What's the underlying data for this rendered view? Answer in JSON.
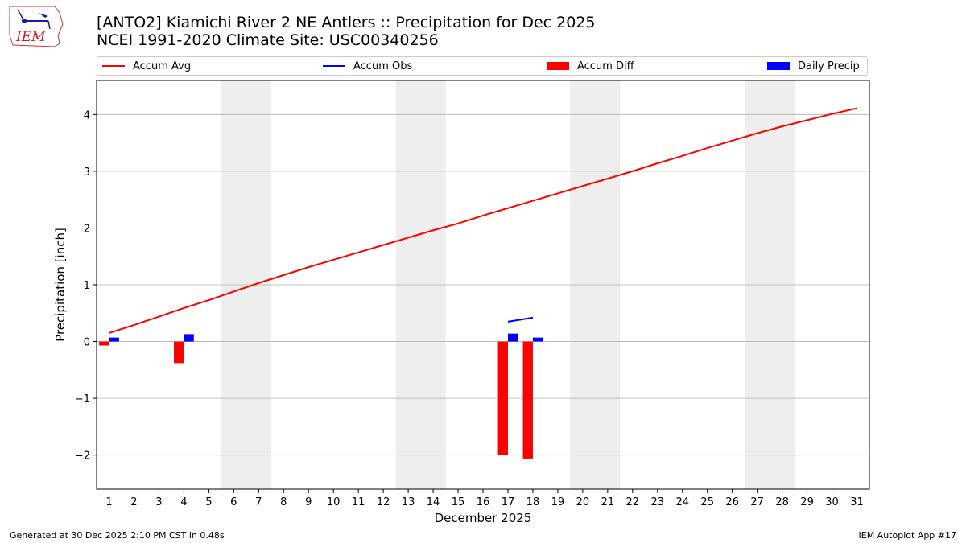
{
  "header": {
    "title_line1": "[ANTO2] Kiamichi River 2 NE Antlers :: Precipitation for Dec 2025",
    "title_line2": "NCEI 1991-2020 Climate Site: USC00340256",
    "logo_text": "IEM"
  },
  "footer": {
    "left": "Generated at 30 Dec 2025 2:10 PM CST in 0.48s",
    "right": "IEM Autoplot App #17"
  },
  "colors": {
    "accum_avg": "#ff0000",
    "accum_obs": "#0000ff",
    "accum_diff": "#ff0000",
    "daily_precip": "#0000ff",
    "weekend_shade": "#eeeeee",
    "grid": "#b0b0b0"
  },
  "chart_data": {
    "type": "bar",
    "xlabel": "December 2025",
    "ylabel": "Precipitation [inch]",
    "xlim": [
      0.5,
      31.5
    ],
    "ylim": [
      -2.6,
      4.6
    ],
    "yticks": [
      -2,
      -1,
      0,
      1,
      2,
      3,
      4
    ],
    "ytick_labels": [
      "−2",
      "−1",
      "0",
      "1",
      "2",
      "3",
      "4"
    ],
    "grid": "horizontal",
    "legend_placement": "top",
    "x": [
      1,
      2,
      3,
      4,
      5,
      6,
      7,
      8,
      9,
      10,
      11,
      12,
      13,
      14,
      15,
      16,
      17,
      18,
      19,
      20,
      21,
      22,
      23,
      24,
      25,
      26,
      27,
      28,
      29,
      30,
      31
    ],
    "shaded_weekends": [
      [
        6,
        7
      ],
      [
        13,
        14
      ],
      [
        20,
        21
      ],
      [
        27,
        28
      ]
    ],
    "series": [
      {
        "name": "Accum Avg",
        "type": "line",
        "values": [
          0.15,
          0.29,
          0.44,
          0.59,
          0.73,
          0.88,
          1.03,
          1.17,
          1.31,
          1.44,
          1.57,
          1.7,
          1.83,
          1.96,
          2.08,
          2.22,
          2.35,
          2.48,
          2.61,
          2.74,
          2.87,
          3.0,
          3.14,
          3.27,
          3.41,
          3.54,
          3.67,
          3.79,
          3.9,
          4.01,
          4.11
        ]
      },
      {
        "name": "Accum Obs",
        "type": "line",
        "values": [
          null,
          null,
          null,
          null,
          null,
          null,
          null,
          null,
          null,
          null,
          null,
          null,
          null,
          null,
          null,
          null,
          0.35,
          0.42,
          null,
          null,
          null,
          null,
          null,
          null,
          null,
          null,
          null,
          null,
          null,
          null,
          null
        ]
      },
      {
        "name": "Accum Diff",
        "type": "bar",
        "values": [
          -0.07,
          null,
          null,
          -0.38,
          null,
          null,
          null,
          null,
          null,
          null,
          null,
          null,
          null,
          null,
          null,
          null,
          -2.0,
          -2.06,
          null,
          null,
          null,
          null,
          null,
          null,
          null,
          null,
          null,
          null,
          null,
          null,
          null
        ]
      },
      {
        "name": "Daily Precip",
        "type": "bar",
        "values": [
          0.07,
          null,
          null,
          0.13,
          null,
          null,
          null,
          null,
          null,
          null,
          null,
          null,
          null,
          null,
          null,
          null,
          0.14,
          0.07,
          null,
          null,
          null,
          null,
          null,
          null,
          null,
          null,
          null,
          null,
          null,
          null,
          null
        ]
      }
    ]
  }
}
